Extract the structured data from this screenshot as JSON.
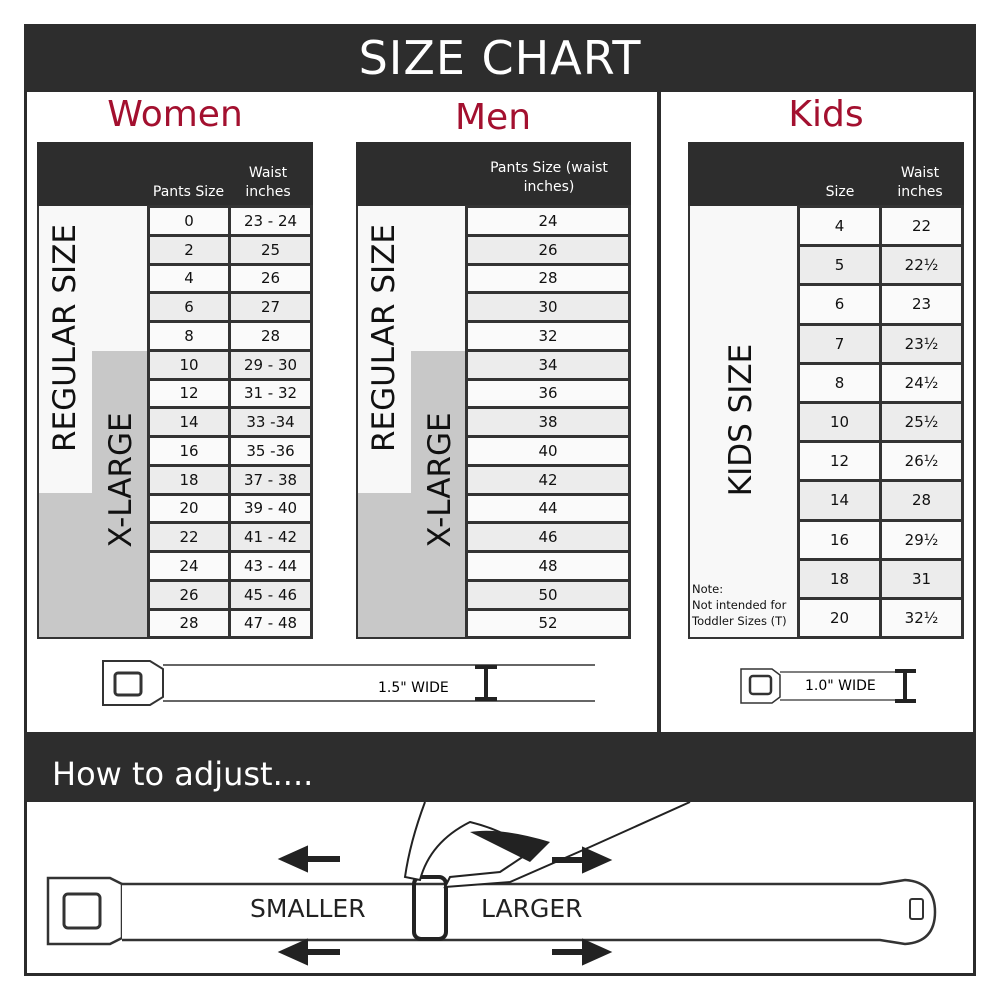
{
  "title": "SIZE CHART",
  "accent": "#a3102f",
  "women": {
    "title": "Women",
    "col1": "Pants Size",
    "col2": "Waist inches",
    "regular_label": "REGULAR SIZE",
    "xlarge_label": "X-LARGE",
    "rows": [
      [
        "0",
        "23 - 24"
      ],
      [
        "2",
        "25"
      ],
      [
        "4",
        "26"
      ],
      [
        "6",
        "27"
      ],
      [
        "8",
        "28"
      ],
      [
        "10",
        "29 - 30"
      ],
      [
        "12",
        "31 - 32"
      ],
      [
        "14",
        "33 -34"
      ],
      [
        "16",
        "35 -36"
      ],
      [
        "18",
        "37 - 38"
      ],
      [
        "20",
        "39 - 40"
      ],
      [
        "22",
        "41 - 42"
      ],
      [
        "24",
        "43 - 44"
      ],
      [
        "26",
        "45 - 46"
      ],
      [
        "28",
        "47 - 48"
      ]
    ],
    "belt_width": "1.5\" WIDE"
  },
  "men": {
    "title": "Men",
    "col1": "Pants Size (waist inches)",
    "regular_label": "REGULAR SIZE",
    "xlarge_label": "X-LARGE",
    "rows": [
      "24",
      "26",
      "28",
      "30",
      "32",
      "34",
      "36",
      "38",
      "40",
      "42",
      "44",
      "46",
      "48",
      "50",
      "52"
    ]
  },
  "kids": {
    "title": "Kids",
    "col1": "Size",
    "col2": "Waist inches",
    "label": "KIDS SIZE",
    "note_title": "Note:",
    "note": "Not intended for Toddler Sizes (T)",
    "rows": [
      [
        "4",
        "22"
      ],
      [
        "5",
        "22½"
      ],
      [
        "6",
        "23"
      ],
      [
        "7",
        "23½"
      ],
      [
        "8",
        "24½"
      ],
      [
        "10",
        "25½"
      ],
      [
        "12",
        "26½"
      ],
      [
        "14",
        "28"
      ],
      [
        "16",
        "29½"
      ],
      [
        "18",
        "31"
      ],
      [
        "20",
        "32½"
      ]
    ],
    "belt_width": "1.0\" WIDE"
  },
  "adjust": {
    "title": "How to adjust....",
    "smaller": "SMALLER",
    "larger": "LARGER"
  }
}
